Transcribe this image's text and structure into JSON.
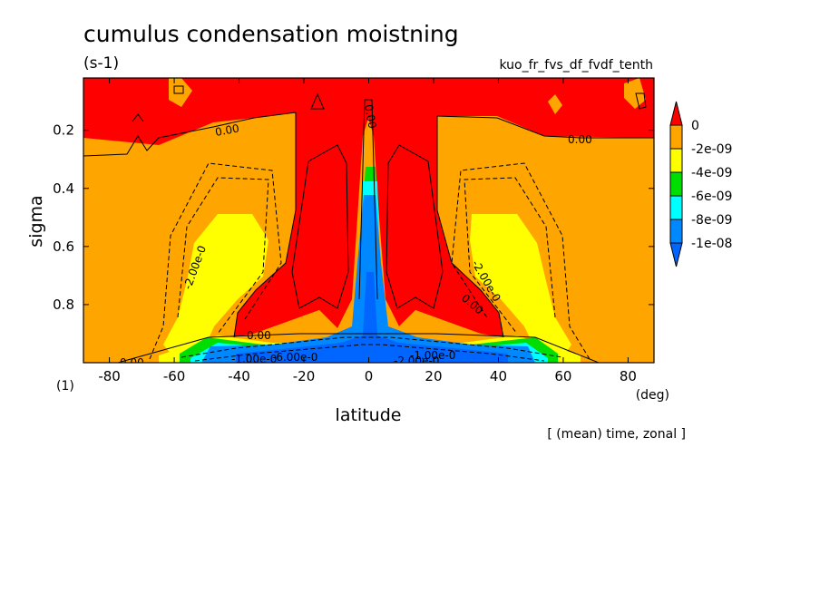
{
  "chart_data": {
    "type": "contour",
    "title": "cumulus condensation moistning",
    "units": "(s-1)",
    "dataset": "kuo_fr_fvs_df_fvdf_tenth",
    "xlabel": "latitude",
    "x_unit": "(deg)",
    "ylabel": "sigma",
    "y_unit": "(1)",
    "note": "[ (mean) time, zonal ]",
    "xlim": [
      -88,
      88
    ],
    "ylim": [
      1.0,
      0.02
    ],
    "x_ticks": [
      "-80",
      "-60",
      "-40",
      "-20",
      "0",
      "20",
      "40",
      "60",
      "80"
    ],
    "y_ticks": [
      "0.2",
      "0.4",
      "0.6",
      "0.8"
    ],
    "colorbar": {
      "labels": [
        "0",
        "-2e-09",
        "-4e-09",
        "-6e-09",
        "-8e-09",
        "-1e-08"
      ],
      "colors": [
        "#ff0000",
        "#ffa500",
        "#ffff00",
        "#00dd00",
        "#00ffff",
        "#0088ff",
        "#0066ff"
      ]
    },
    "contour_labels": [
      "0.00",
      "0.00",
      "0.00",
      "-2.00e-0",
      "-2.00e-0",
      "0.00",
      "0.00",
      "-1.00e-0",
      "-6.00e-0",
      "-1.00e-0",
      "-2.00e-0",
      "0.00"
    ]
  }
}
